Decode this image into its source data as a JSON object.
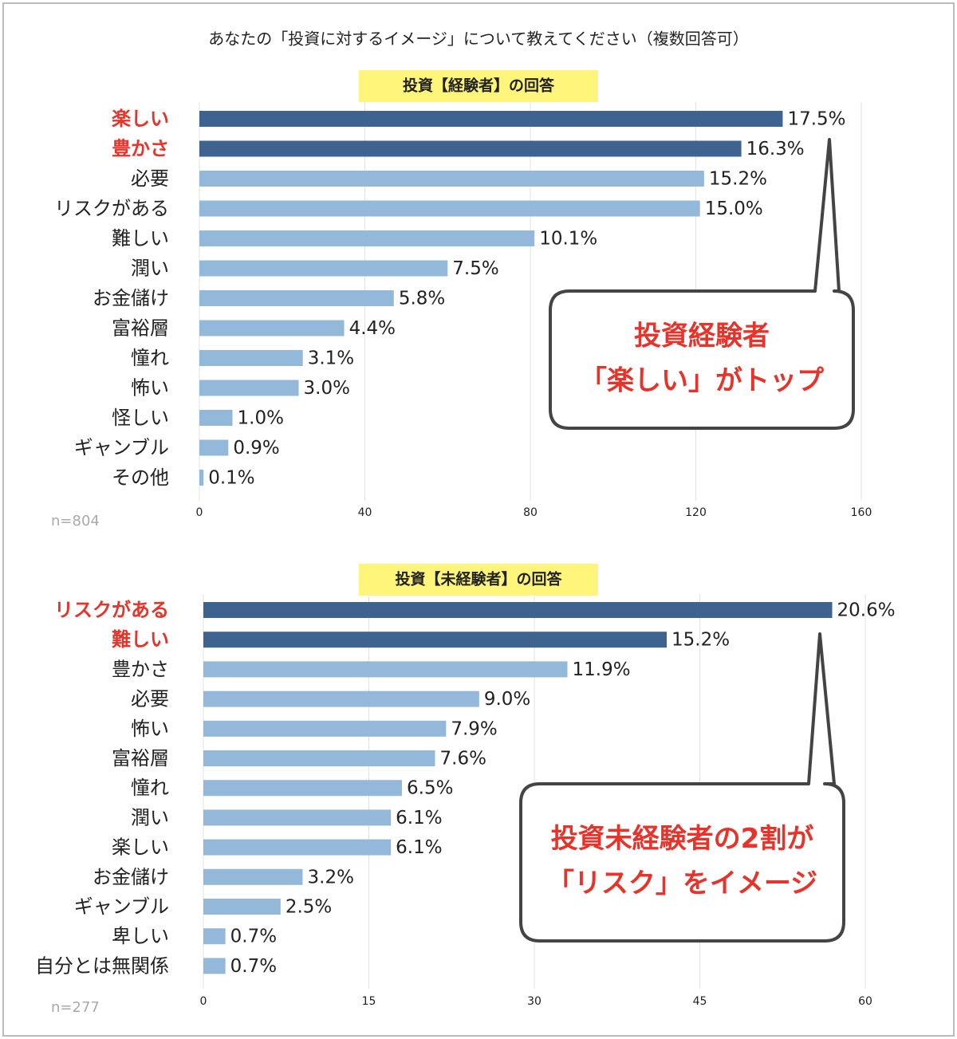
{
  "title": "あなたの「投資に対するイメージ」について教えてください（複数回答可）",
  "chart_data": [
    {
      "type": "hbar",
      "title": "投資【経験者】の回答",
      "note": "n=804",
      "categories": [
        "楽しい",
        "豊かさ",
        "必要",
        "リスクがある",
        "難しい",
        "潤い",
        "お金儲け",
        "富裕層",
        "憧れ",
        "怖い",
        "怪しい",
        "ギャンブル",
        "その他"
      ],
      "values": [
        141,
        131,
        122,
        121,
        81,
        60,
        47,
        35,
        25,
        24,
        8,
        7,
        1
      ],
      "value_labels": [
        "17.5%",
        "16.3%",
        "15.2%",
        "15.0%",
        "10.1%",
        "7.5%",
        "5.8%",
        "4.4%",
        "3.1%",
        "3.0%",
        "1.0%",
        "0.9%",
        "0.1%"
      ],
      "colors": [
        "#3f6390",
        "#3f6390",
        "#93b8d9",
        "#93b8d9",
        "#93b8d9",
        "#93b8d9",
        "#93b8d9",
        "#93b8d9",
        "#93b8d9",
        "#93b8d9",
        "#93b8d9",
        "#93b8d9",
        "#93b8d9"
      ],
      "category_colors": [
        "#e8332a",
        "#e8332a",
        "#222",
        "#222",
        "#222",
        "#222",
        "#222",
        "#222",
        "#222",
        "#222",
        "#222",
        "#222",
        "#222"
      ],
      "xlim": [
        0,
        160
      ],
      "xticks": [
        0,
        40,
        80,
        120,
        160
      ],
      "grid": true,
      "annotation": [
        "投資経験者",
        "「楽しい」がトップ"
      ]
    },
    {
      "type": "hbar",
      "title": "投資【未経験者】の回答",
      "note": "n=277",
      "categories": [
        "リスクがある",
        "難しい",
        "豊かさ",
        "必要",
        "怖い",
        "富裕層",
        "憧れ",
        "潤い",
        "楽しい",
        "お金儲け",
        "ギャンブル",
        "卑しい",
        "自分とは無関係"
      ],
      "values": [
        57,
        42,
        33,
        25,
        22,
        21,
        18,
        17,
        17,
        9,
        7,
        2,
        2
      ],
      "value_labels": [
        "20.6%",
        "15.2%",
        "11.9%",
        "9.0%",
        "7.9%",
        "7.6%",
        "6.5%",
        "6.1%",
        "6.1%",
        "3.2%",
        "2.5%",
        "0.7%",
        "0.7%"
      ],
      "colors": [
        "#3f6390",
        "#3f6390",
        "#93b8d9",
        "#93b8d9",
        "#93b8d9",
        "#93b8d9",
        "#93b8d9",
        "#93b8d9",
        "#93b8d9",
        "#93b8d9",
        "#93b8d9",
        "#93b8d9",
        "#93b8d9"
      ],
      "category_colors": [
        "#e8332a",
        "#e8332a",
        "#222",
        "#222",
        "#222",
        "#222",
        "#222",
        "#222",
        "#222",
        "#222",
        "#222",
        "#222",
        "#222"
      ],
      "xlim": [
        0,
        60
      ],
      "xticks": [
        0,
        15,
        30,
        45,
        60
      ],
      "grid": true,
      "annotation": [
        "投資未経験者の2割が",
        "「リスク」をイメージ"
      ]
    }
  ]
}
